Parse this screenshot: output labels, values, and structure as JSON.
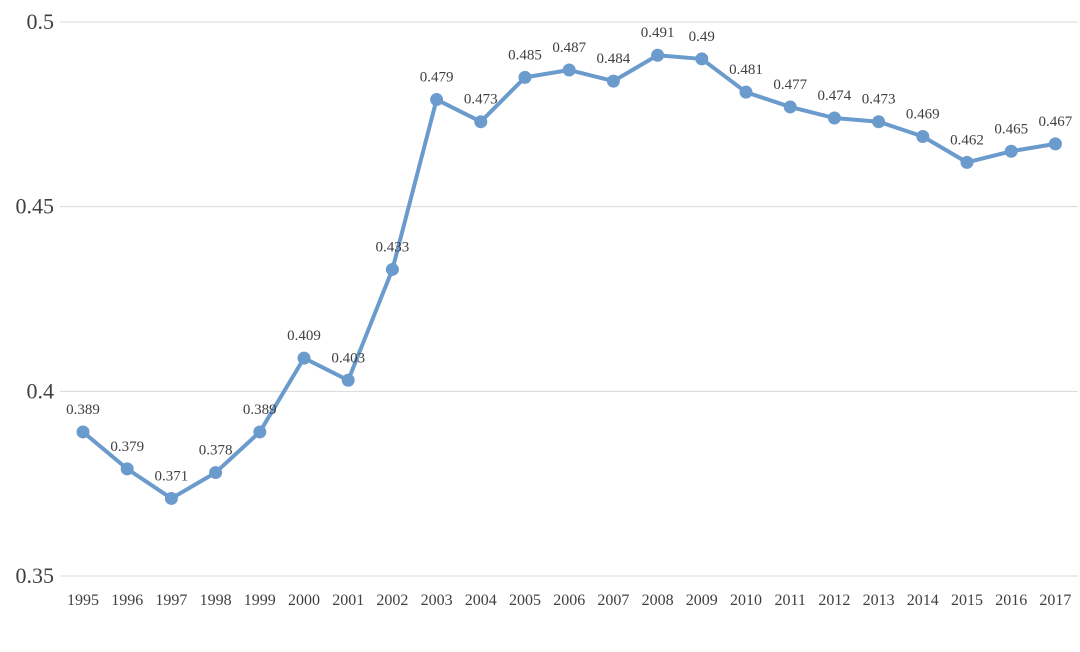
{
  "chart_data": {
    "type": "line",
    "title": "",
    "xlabel": "",
    "ylabel": "",
    "ylim": [
      0.35,
      0.5
    ],
    "yticks": [
      "0.35",
      "0.4",
      "0.45",
      "0.5"
    ],
    "grid": true,
    "categories": [
      "1995",
      "1996",
      "1997",
      "1998",
      "1999",
      "2000",
      "2001",
      "2002",
      "2003",
      "2004",
      "2005",
      "2006",
      "2007",
      "2008",
      "2009",
      "2010",
      "2011",
      "2012",
      "2013",
      "2014",
      "2015",
      "2016",
      "2017"
    ],
    "series": [
      {
        "color": "#6b9bcc",
        "values": [
          0.389,
          0.379,
          0.371,
          0.378,
          0.389,
          0.409,
          0.403,
          0.433,
          0.479,
          0.473,
          0.485,
          0.487,
          0.484,
          0.491,
          0.49,
          0.481,
          0.477,
          0.474,
          0.473,
          0.469,
          0.462,
          0.465,
          0.467
        ],
        "labels": [
          "0.389",
          "0.379",
          "0.371",
          "0.378",
          "0.389",
          "0.409",
          "0.403",
          "0.433",
          "0.479",
          "0.473",
          "0.485",
          "0.487",
          "0.484",
          "0.491",
          "0.49",
          "0.481",
          "0.477",
          "0.474",
          "0.473",
          "0.469",
          "0.462",
          "0.465",
          "0.467"
        ]
      }
    ]
  }
}
